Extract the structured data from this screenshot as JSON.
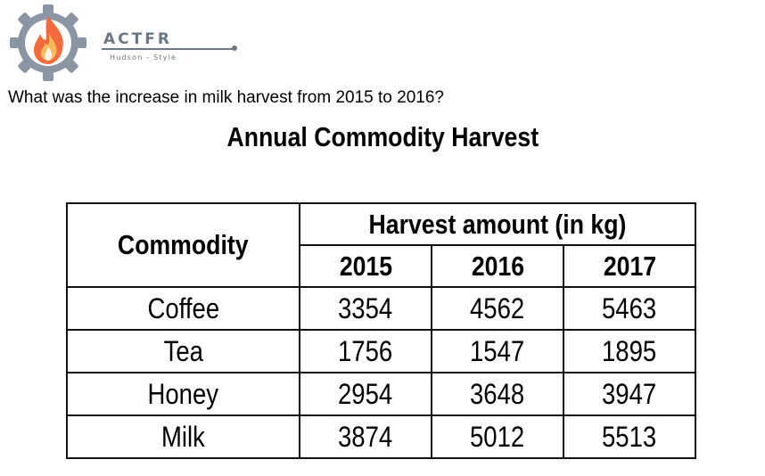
{
  "logo": {
    "brand": "ACTFR",
    "tagline": "Hudson - Style",
    "colors": {
      "gear": "#8a96a3",
      "flame_outer": "#f36a3c",
      "flame_inner": "#fdb85c",
      "text": "#6b7784"
    }
  },
  "question": "What was the increase in milk harvest from 2015 to 2016?",
  "table": {
    "title": "Annual Commodity Harvest",
    "commodity_header": "Commodity",
    "group_header": "Harvest amount (in kg)",
    "years": [
      "2015",
      "2016",
      "2017"
    ],
    "rows": [
      {
        "commodity": "Coffee",
        "values": [
          "3354",
          "4562",
          "5463"
        ]
      },
      {
        "commodity": "Tea",
        "values": [
          "1756",
          "1547",
          "1895"
        ]
      },
      {
        "commodity": "Honey",
        "values": [
          "2954",
          "3648",
          "3947"
        ]
      },
      {
        "commodity": "Milk",
        "values": [
          "3874",
          "5012",
          "5513"
        ]
      }
    ]
  }
}
